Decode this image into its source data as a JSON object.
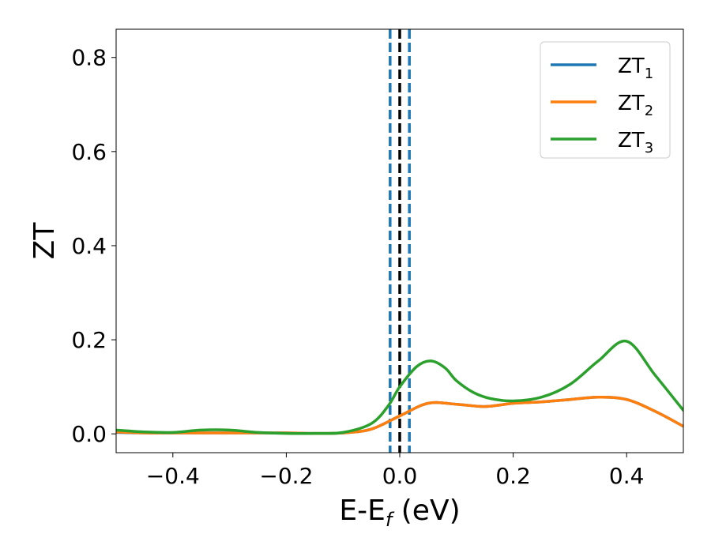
{
  "chart_data": {
    "type": "line",
    "xlabel": "E-E",
    "xlabel_sub": "f",
    "xlabel_unit": " (eV)",
    "ylabel": "ZT",
    "xlim": [
      -0.5,
      0.5
    ],
    "ylim": [
      -0.04,
      0.86
    ],
    "xticks": [
      -0.4,
      -0.2,
      0.0,
      0.2,
      0.4
    ],
    "xtick_labels": [
      "−0.4",
      "−0.2",
      "0.0",
      "0.2",
      "0.4"
    ],
    "yticks": [
      0.0,
      0.2,
      0.4,
      0.6,
      0.8
    ],
    "ytick_labels": [
      "0.0",
      "0.2",
      "0.4",
      "0.6",
      "0.8"
    ],
    "grid": false,
    "legend_position": "top-right",
    "vlines": [
      {
        "x": -0.017,
        "color": "#1f77b4",
        "style": "dashed"
      },
      {
        "x": 0.0,
        "color": "#000000",
        "style": "dashed"
      },
      {
        "x": 0.017,
        "color": "#1f77b4",
        "style": "dashed"
      }
    ],
    "series": [
      {
        "name": "ZT",
        "sub": "1",
        "color": "#1f77b4",
        "x": [
          -0.5,
          -0.45,
          -0.4,
          -0.35,
          -0.3,
          -0.25,
          -0.2,
          -0.15,
          -0.1,
          -0.05,
          0.0,
          0.05,
          0.1,
          0.15,
          0.2,
          0.25,
          0.3,
          0.35,
          0.4,
          0.45,
          0.5
        ],
        "values": [
          0.003,
          0.002,
          0.002,
          0.002,
          0.002,
          0.002,
          0.002,
          0.001,
          0.002,
          0.01,
          0.038,
          0.065,
          0.063,
          0.058,
          0.065,
          0.068,
          0.073,
          0.078,
          0.073,
          0.048,
          0.016
        ]
      },
      {
        "name": "ZT",
        "sub": "2",
        "color": "#ff7f0e",
        "x": [
          -0.5,
          -0.45,
          -0.4,
          -0.35,
          -0.3,
          -0.25,
          -0.2,
          -0.15,
          -0.1,
          -0.05,
          0.0,
          0.05,
          0.1,
          0.15,
          0.2,
          0.25,
          0.3,
          0.35,
          0.4,
          0.45,
          0.5
        ],
        "values": [
          0.004,
          0.002,
          0.002,
          0.002,
          0.002,
          0.002,
          0.002,
          0.001,
          0.002,
          0.01,
          0.038,
          0.065,
          0.063,
          0.058,
          0.065,
          0.068,
          0.073,
          0.078,
          0.073,
          0.048,
          0.016
        ]
      },
      {
        "name": "ZT",
        "sub": "3",
        "color": "#2ca02c",
        "x": [
          -0.5,
          -0.45,
          -0.4,
          -0.35,
          -0.3,
          -0.25,
          -0.2,
          -0.15,
          -0.1,
          -0.05,
          -0.02,
          0.0,
          0.03,
          0.055,
          0.08,
          0.1,
          0.13,
          0.16,
          0.2,
          0.25,
          0.3,
          0.35,
          0.4,
          0.45,
          0.5
        ],
        "values": [
          0.008,
          0.004,
          0.003,
          0.008,
          0.008,
          0.003,
          0.001,
          0.001,
          0.003,
          0.022,
          0.06,
          0.1,
          0.143,
          0.155,
          0.14,
          0.113,
          0.088,
          0.075,
          0.07,
          0.078,
          0.105,
          0.155,
          0.197,
          0.125,
          0.05
        ]
      }
    ]
  }
}
